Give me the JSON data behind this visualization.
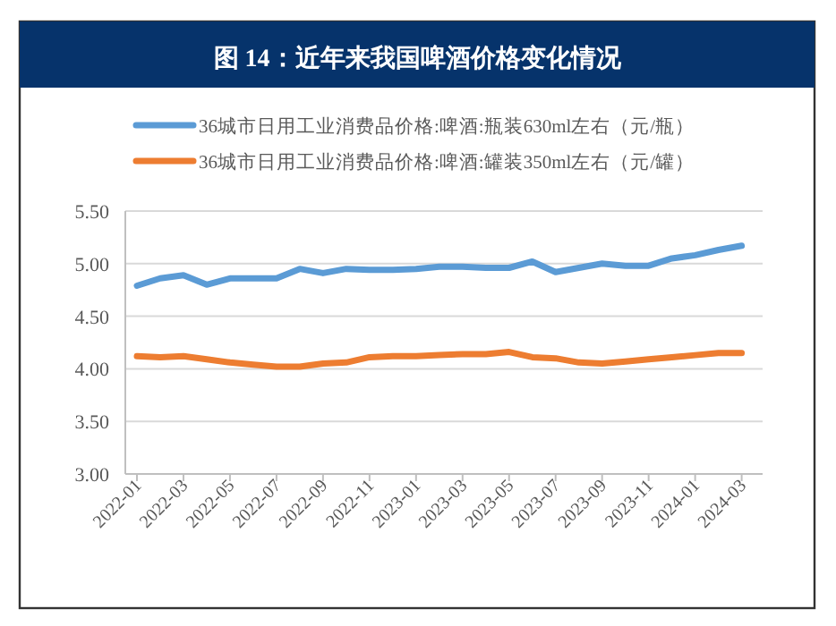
{
  "chart_data": {
    "type": "line",
    "title": "图 14：近年来我国啤酒价格变化情况",
    "x": [
      "2022-01",
      "2022-02",
      "2022-03",
      "2022-04",
      "2022-05",
      "2022-06",
      "2022-07",
      "2022-08",
      "2022-09",
      "2022-10",
      "2022-11",
      "2022-12",
      "2023-01",
      "2023-02",
      "2023-03",
      "2023-04",
      "2023-05",
      "2023-06",
      "2023-07",
      "2023-08",
      "2023-09",
      "2023-10",
      "2023-11",
      "2023-12",
      "2024-01",
      "2024-02",
      "2024-03"
    ],
    "series": [
      {
        "name": "36城市日用工业消费品价格:啤酒:瓶装630ml左右（元/瓶）",
        "color": "#5b9bd5",
        "values": [
          4.79,
          4.86,
          4.89,
          4.8,
          4.86,
          4.86,
          4.86,
          4.95,
          4.91,
          4.95,
          4.94,
          4.94,
          4.95,
          4.97,
          4.97,
          4.96,
          4.96,
          5.02,
          4.92,
          4.96,
          5.0,
          4.98,
          4.98,
          5.05,
          5.08,
          5.13,
          5.17
        ]
      },
      {
        "name": "36城市日用工业消费品价格:啤酒:罐装350ml左右（元/罐）",
        "color": "#ed7d31",
        "values": [
          4.12,
          4.11,
          4.12,
          4.09,
          4.06,
          4.04,
          4.02,
          4.02,
          4.05,
          4.06,
          4.11,
          4.12,
          4.12,
          4.13,
          4.14,
          4.14,
          4.16,
          4.11,
          4.1,
          4.06,
          4.05,
          4.07,
          4.09,
          4.11,
          4.13,
          4.15,
          4.15
        ]
      }
    ],
    "xlim": [
      "2021-12-16",
      "2024-03-28"
    ],
    "xticks": [
      "2022-01",
      "2022-03",
      "2022-05",
      "2022-07",
      "2022-09",
      "2022-11",
      "2023-01",
      "2023-03",
      "2023-05",
      "2023-07",
      "2023-09",
      "2023-11",
      "2024-01",
      "2024-03"
    ],
    "ylim": [
      3.0,
      5.5
    ],
    "yticks": [
      {
        "value": 3.0,
        "label": "3.00"
      },
      {
        "value": 3.5,
        "label": "3.50"
      },
      {
        "value": 4.0,
        "label": "4.00"
      },
      {
        "value": 4.5,
        "label": "4.50"
      },
      {
        "value": 5.0,
        "label": "5.00"
      },
      {
        "value": 5.5,
        "label": "5.50"
      }
    ],
    "grid": "y",
    "legend": "top",
    "marker": "none",
    "line_style": "solid"
  }
}
